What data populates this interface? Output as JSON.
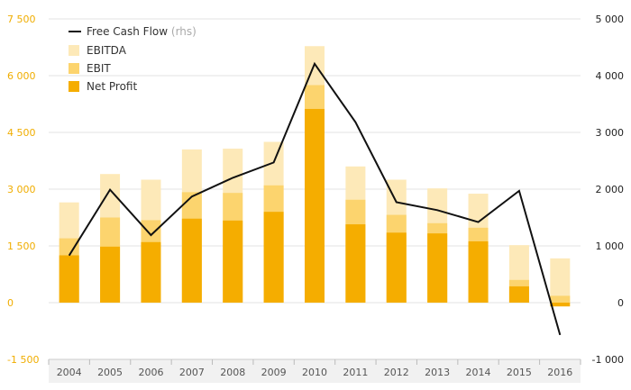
{
  "chart_data": {
    "type": "bar",
    "categories": [
      "2004",
      "2005",
      "2006",
      "2007",
      "2008",
      "2009",
      "2010",
      "2011",
      "2012",
      "2013",
      "2014",
      "2015",
      "2016"
    ],
    "series": [
      {
        "name": "EBITDA",
        "color": "#fde9b8",
        "axis": "left",
        "values": [
          2650,
          3400,
          3250,
          4050,
          4070,
          4250,
          6780,
          3600,
          3250,
          3020,
          2880,
          1520,
          1170
        ]
      },
      {
        "name": "EBIT",
        "color": "#fcd46e",
        "axis": "left",
        "values": [
          1700,
          2250,
          2180,
          2920,
          2900,
          3100,
          5750,
          2720,
          2320,
          2100,
          1980,
          600,
          180
        ]
      },
      {
        "name": "Net Profit",
        "color": "#f5ad00",
        "axis": "left",
        "values": [
          1250,
          1480,
          1600,
          2220,
          2170,
          2400,
          5120,
          2070,
          1850,
          1830,
          1620,
          430,
          -100
        ]
      },
      {
        "name": "Free Cash Flow",
        "name_suffix": "(rhs)",
        "color": "#111111",
        "axis": "right",
        "type": "line",
        "values": [
          830,
          1990,
          1190,
          1870,
          2200,
          2470,
          4210,
          3180,
          1770,
          1630,
          1420,
          1970,
          -570
        ]
      }
    ],
    "y_left": {
      "range": [
        -1500,
        7500
      ],
      "ticks": [
        "-1 500",
        "0",
        "1 500",
        "3 000",
        "4 500",
        "6 000",
        "7 500"
      ],
      "tick_values": [
        -1500,
        0,
        1500,
        3000,
        4500,
        6000,
        7500
      ]
    },
    "y_right": {
      "range": [
        -1000,
        5000
      ],
      "ticks": [
        "-1 000",
        "0",
        "1 000",
        "2 000",
        "3 000",
        "4 000",
        "5 000"
      ],
      "tick_values": [
        -1000,
        0,
        1000,
        2000,
        3000,
        4000,
        5000
      ]
    },
    "legend_placement": "top-left",
    "colors": {
      "left_axis": "#f0ad00",
      "right_axis": "#222222",
      "grid": "#e3e3e3",
      "axis_band": "#f1f1f1"
    }
  }
}
